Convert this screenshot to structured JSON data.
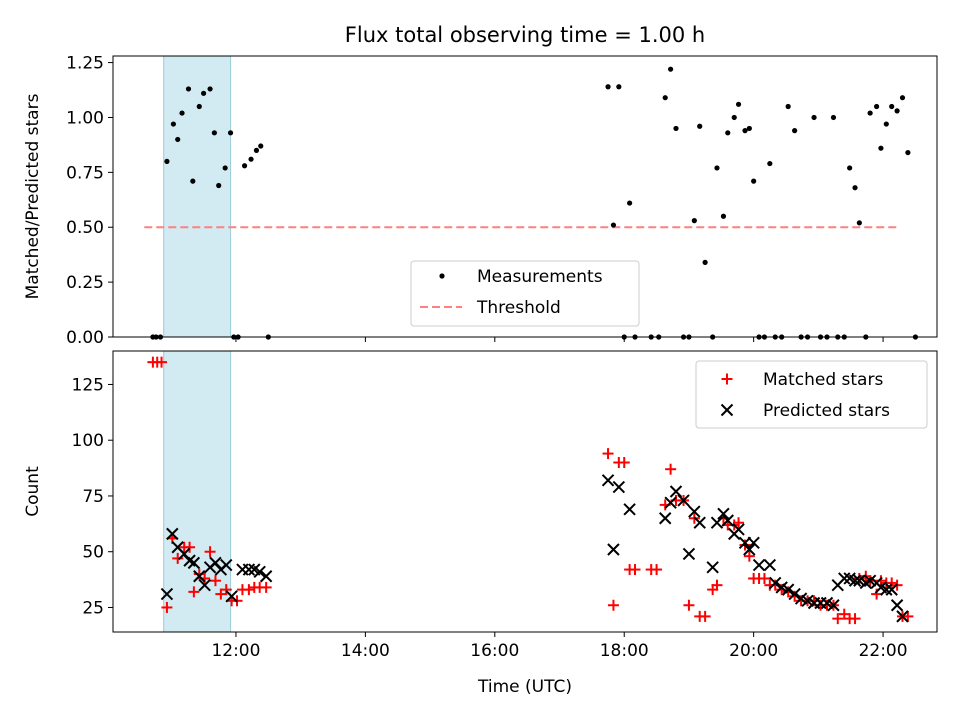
{
  "chart_data": [
    {
      "type": "scatter",
      "title": "Flux total observing time = 1.00 h",
      "xlabel": "",
      "ylabel": "Matched/Predicted stars",
      "xlim": [
        "10:06",
        "22:50"
      ],
      "ylim": [
        0,
        1.28
      ],
      "yticks": [
        0.0,
        0.25,
        0.5,
        0.75,
        1.0,
        1.25
      ],
      "ytick_labels": [
        "0.00",
        "0.25",
        "0.50",
        "0.75",
        "1.00",
        "1.25"
      ],
      "xticks": [
        "12:00",
        "14:00",
        "16:00",
        "18:00",
        "20:00",
        "22:00"
      ],
      "xtick_labels": [
        "",
        "",
        "",
        "",
        "",
        ""
      ],
      "shaded_span": [
        "10:53",
        "11:55"
      ],
      "legend": {
        "placement": "lower-center",
        "entries": [
          "Measurements",
          "Threshold"
        ]
      },
      "threshold": {
        "name": "Threshold",
        "y": 0.5,
        "x": [
          "10:35",
          "22:15"
        ],
        "color": "#ff8080"
      },
      "series": [
        {
          "name": "Measurements",
          "marker": "dot",
          "color": "#000000",
          "points": [
            [
              "10:43",
              0.0
            ],
            [
              "10:46",
              0.0
            ],
            [
              "10:50",
              0.0
            ],
            [
              "10:56",
              0.8
            ],
            [
              "11:02",
              0.97
            ],
            [
              "11:06",
              0.9
            ],
            [
              "11:10",
              1.02
            ],
            [
              "11:16",
              1.13
            ],
            [
              "11:20",
              0.71
            ],
            [
              "11:26",
              1.05
            ],
            [
              "11:30",
              1.11
            ],
            [
              "11:36",
              1.13
            ],
            [
              "11:40",
              0.93
            ],
            [
              "11:44",
              0.69
            ],
            [
              "11:50",
              0.77
            ],
            [
              "11:55",
              0.93
            ],
            [
              "11:58",
              0.0
            ],
            [
              "12:02",
              0.0
            ],
            [
              "12:08",
              0.78
            ],
            [
              "12:14",
              0.81
            ],
            [
              "12:19",
              0.85
            ],
            [
              "12:23",
              0.87
            ],
            [
              "12:30",
              0.0
            ],
            [
              "17:45",
              1.14
            ],
            [
              "17:50",
              0.51
            ],
            [
              "17:55",
              1.14
            ],
            [
              "18:00",
              0.0
            ],
            [
              "18:05",
              0.61
            ],
            [
              "18:10",
              0.0
            ],
            [
              "18:25",
              0.0
            ],
            [
              "18:32",
              0.0
            ],
            [
              "18:38",
              1.09
            ],
            [
              "18:43",
              1.22
            ],
            [
              "18:48",
              0.95
            ],
            [
              "18:55",
              0.0
            ],
            [
              "19:00",
              0.0
            ],
            [
              "19:05",
              0.53
            ],
            [
              "19:10",
              0.96
            ],
            [
              "19:15",
              0.34
            ],
            [
              "19:22",
              0.0
            ],
            [
              "19:26",
              0.77
            ],
            [
              "19:32",
              0.55
            ],
            [
              "19:36",
              0.93
            ],
            [
              "19:42",
              1.0
            ],
            [
              "19:46",
              1.06
            ],
            [
              "19:52",
              0.94
            ],
            [
              "19:56",
              0.95
            ],
            [
              "20:00",
              0.71
            ],
            [
              "20:05",
              0.0
            ],
            [
              "20:10",
              0.0
            ],
            [
              "20:15",
              0.79
            ],
            [
              "20:20",
              0.0
            ],
            [
              "20:26",
              0.0
            ],
            [
              "20:32",
              1.05
            ],
            [
              "20:38",
              0.94
            ],
            [
              "20:44",
              0.0
            ],
            [
              "20:50",
              0.0
            ],
            [
              "20:56",
              1.0
            ],
            [
              "21:02",
              0.0
            ],
            [
              "21:08",
              0.0
            ],
            [
              "21:14",
              1.0
            ],
            [
              "21:18",
              0.0
            ],
            [
              "21:24",
              0.0
            ],
            [
              "21:29",
              0.77
            ],
            [
              "21:34",
              0.68
            ],
            [
              "21:38",
              0.52
            ],
            [
              "21:44",
              0.0
            ],
            [
              "21:48",
              1.02
            ],
            [
              "21:54",
              1.05
            ],
            [
              "21:58",
              0.86
            ],
            [
              "22:03",
              0.97
            ],
            [
              "22:08",
              1.05
            ],
            [
              "22:13",
              1.03
            ],
            [
              "22:18",
              1.09
            ],
            [
              "22:23",
              0.84
            ],
            [
              "22:30",
              0.0
            ]
          ]
        }
      ]
    },
    {
      "type": "scatter",
      "title": "",
      "xlabel": "Time (UTC)",
      "ylabel": "Count",
      "xlim": [
        "10:06",
        "22:50"
      ],
      "ylim": [
        14,
        140
      ],
      "yticks": [
        25,
        50,
        75,
        100,
        125
      ],
      "ytick_labels": [
        "25",
        "50",
        "75",
        "100",
        "125"
      ],
      "xticks": [
        "12:00",
        "14:00",
        "16:00",
        "18:00",
        "20:00",
        "22:00"
      ],
      "xtick_labels": [
        "12:00",
        "14:00",
        "16:00",
        "18:00",
        "20:00",
        "22:00"
      ],
      "shaded_span": [
        "10:53",
        "11:55"
      ],
      "legend": {
        "placement": "upper-right",
        "entries": [
          "Matched stars",
          "Predicted stars"
        ]
      },
      "series": [
        {
          "name": "Matched stars",
          "marker": "plus",
          "color": "#ff0000",
          "points": [
            [
              "10:43",
              135
            ],
            [
              "10:47",
              135
            ],
            [
              "10:51",
              135
            ],
            [
              "10:56",
              25
            ],
            [
              "11:01",
              56
            ],
            [
              "11:06",
              47
            ],
            [
              "11:12",
              52
            ],
            [
              "11:17",
              52
            ],
            [
              "11:21",
              32
            ],
            [
              "11:26",
              40
            ],
            [
              "11:31",
              38
            ],
            [
              "11:36",
              50
            ],
            [
              "11:41",
              37
            ],
            [
              "11:46",
              31
            ],
            [
              "11:51",
              33
            ],
            [
              "11:56",
              28
            ],
            [
              "12:01",
              28
            ],
            [
              "12:06",
              33
            ],
            [
              "12:12",
              33
            ],
            [
              "12:17",
              34
            ],
            [
              "12:22",
              34
            ],
            [
              "12:28",
              34
            ],
            [
              "17:45",
              94
            ],
            [
              "17:50",
              26
            ],
            [
              "17:55",
              90
            ],
            [
              "18:00",
              90
            ],
            [
              "18:05",
              42
            ],
            [
              "18:10",
              42
            ],
            [
              "18:25",
              42
            ],
            [
              "18:30",
              42
            ],
            [
              "18:38",
              71
            ],
            [
              "18:43",
              87
            ],
            [
              "18:48",
              73
            ],
            [
              "18:55",
              73
            ],
            [
              "19:00",
              26
            ],
            [
              "19:05",
              65
            ],
            [
              "19:10",
              21
            ],
            [
              "19:15",
              21
            ],
            [
              "19:22",
              33
            ],
            [
              "19:26",
              35
            ],
            [
              "19:32",
              65
            ],
            [
              "19:36",
              62
            ],
            [
              "19:42",
              62
            ],
            [
              "19:46",
              63
            ],
            [
              "19:52",
              53
            ],
            [
              "19:56",
              48
            ],
            [
              "20:00",
              38
            ],
            [
              "20:05",
              38
            ],
            [
              "20:10",
              38
            ],
            [
              "20:15",
              35
            ],
            [
              "20:20",
              35
            ],
            [
              "20:26",
              33
            ],
            [
              "20:32",
              32
            ],
            [
              "20:38",
              30
            ],
            [
              "20:44",
              28
            ],
            [
              "20:50",
              28
            ],
            [
              "20:56",
              28
            ],
            [
              "21:02",
              26
            ],
            [
              "21:08",
              26
            ],
            [
              "21:14",
              26
            ],
            [
              "21:18",
              20
            ],
            [
              "21:24",
              22
            ],
            [
              "21:29",
              20
            ],
            [
              "21:34",
              20
            ],
            [
              "21:38",
              38
            ],
            [
              "21:44",
              39
            ],
            [
              "21:48",
              37
            ],
            [
              "21:54",
              31
            ],
            [
              "21:58",
              37
            ],
            [
              "22:03",
              36
            ],
            [
              "22:08",
              36
            ],
            [
              "22:13",
              35
            ],
            [
              "22:18",
              21
            ],
            [
              "22:23",
              21
            ]
          ]
        },
        {
          "name": "Predicted stars",
          "marker": "x",
          "color": "#000000",
          "points": [
            [
              "10:56",
              31
            ],
            [
              "11:01",
              58
            ],
            [
              "11:06",
              52
            ],
            [
              "11:12",
              49
            ],
            [
              "11:17",
              46
            ],
            [
              "11:21",
              45
            ],
            [
              "11:26",
              39
            ],
            [
              "11:31",
              35
            ],
            [
              "11:36",
              43
            ],
            [
              "11:41",
              45
            ],
            [
              "11:46",
              42
            ],
            [
              "11:51",
              44
            ],
            [
              "11:56",
              30
            ],
            [
              "12:06",
              42
            ],
            [
              "12:12",
              42
            ],
            [
              "12:17",
              42
            ],
            [
              "12:22",
              41
            ],
            [
              "12:28",
              39
            ],
            [
              "17:45",
              82
            ],
            [
              "17:50",
              51
            ],
            [
              "17:55",
              79
            ],
            [
              "18:05",
              69
            ],
            [
              "18:38",
              65
            ],
            [
              "18:43",
              72
            ],
            [
              "18:48",
              77
            ],
            [
              "18:55",
              73
            ],
            [
              "19:00",
              49
            ],
            [
              "19:05",
              68
            ],
            [
              "19:10",
              63
            ],
            [
              "19:22",
              43
            ],
            [
              "19:26",
              63
            ],
            [
              "19:32",
              67
            ],
            [
              "19:36",
              64
            ],
            [
              "19:42",
              58
            ],
            [
              "19:46",
              60
            ],
            [
              "19:52",
              54
            ],
            [
              "19:56",
              51
            ],
            [
              "20:00",
              54
            ],
            [
              "20:05",
              44
            ],
            [
              "20:15",
              44
            ],
            [
              "20:20",
              36
            ],
            [
              "20:26",
              34
            ],
            [
              "20:32",
              33
            ],
            [
              "20:38",
              31
            ],
            [
              "20:44",
              29
            ],
            [
              "20:50",
              28
            ],
            [
              "20:56",
              27
            ],
            [
              "21:02",
              27
            ],
            [
              "21:08",
              27
            ],
            [
              "21:14",
              26
            ],
            [
              "21:18",
              35
            ],
            [
              "21:24",
              38
            ],
            [
              "21:29",
              38
            ],
            [
              "21:34",
              37
            ],
            [
              "21:38",
              37
            ],
            [
              "21:44",
              36
            ],
            [
              "21:48",
              37
            ],
            [
              "21:54",
              36
            ],
            [
              "21:58",
              34
            ],
            [
              "22:03",
              33
            ],
            [
              "22:08",
              33
            ],
            [
              "22:13",
              26
            ],
            [
              "22:18",
              21
            ]
          ]
        }
      ]
    }
  ]
}
